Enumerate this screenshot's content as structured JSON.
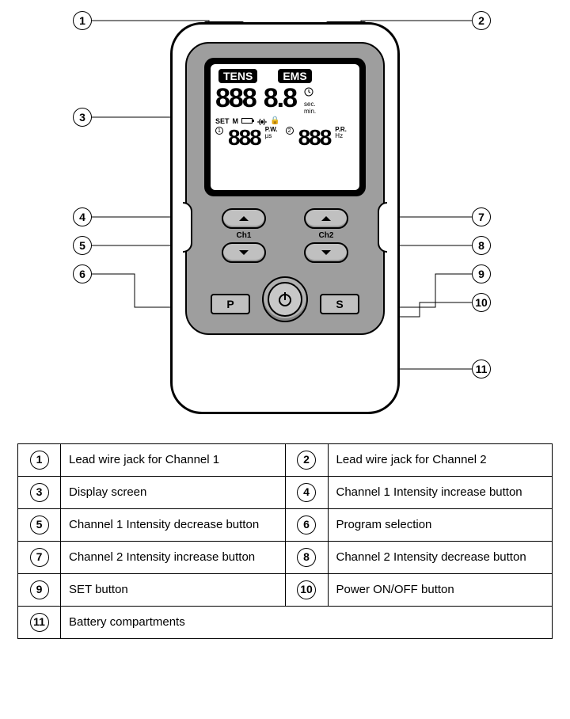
{
  "display": {
    "badge_left": "TENS",
    "badge_right": "EMS",
    "seg_top_left": "888",
    "seg_top_right": "8.8",
    "sec": "sec.",
    "min": "min.",
    "set": "SET",
    "m": "M",
    "pw": "P.W.",
    "us": "µs",
    "pr": "P.R.",
    "hz": "Hz",
    "seg_bot_left": "888",
    "seg_bot_right": "888",
    "circ1": "1",
    "circ2": "2"
  },
  "controls": {
    "ch1": "Ch1",
    "ch2": "Ch2",
    "p": "P",
    "s": "S"
  },
  "callouts": {
    "1": "1",
    "2": "2",
    "3": "3",
    "4": "4",
    "5": "5",
    "6": "6",
    "7": "7",
    "8": "8",
    "9": "9",
    "10": "10",
    "11": "11"
  },
  "legend": [
    {
      "n": "1",
      "t": "Lead wire jack for Channel 1",
      "n2": "2",
      "t2": "Lead wire jack for Channel 2"
    },
    {
      "n": "3",
      "t": "Display screen",
      "n2": "4",
      "t2": "Channel 1 Intensity increase button"
    },
    {
      "n": "5",
      "t": "Channel 1 Intensity decrease button",
      "n2": "6",
      "t2": "Program selection"
    },
    {
      "n": "7",
      "t": "Channel 2 Intensity  increase button",
      "n2": "8",
      "t2": "Channel 2 Intensity decrease button"
    },
    {
      "n": "9",
      "t": "SET button",
      "n2": "10",
      "t2": "Power ON/OFF button"
    },
    {
      "n": "11",
      "t": "Battery compartments"
    }
  ],
  "style": {
    "bg": "#ffffff",
    "line": "#000000",
    "panel_gray": "#9e9e9e",
    "btn_gray": "#c0c0c0"
  }
}
